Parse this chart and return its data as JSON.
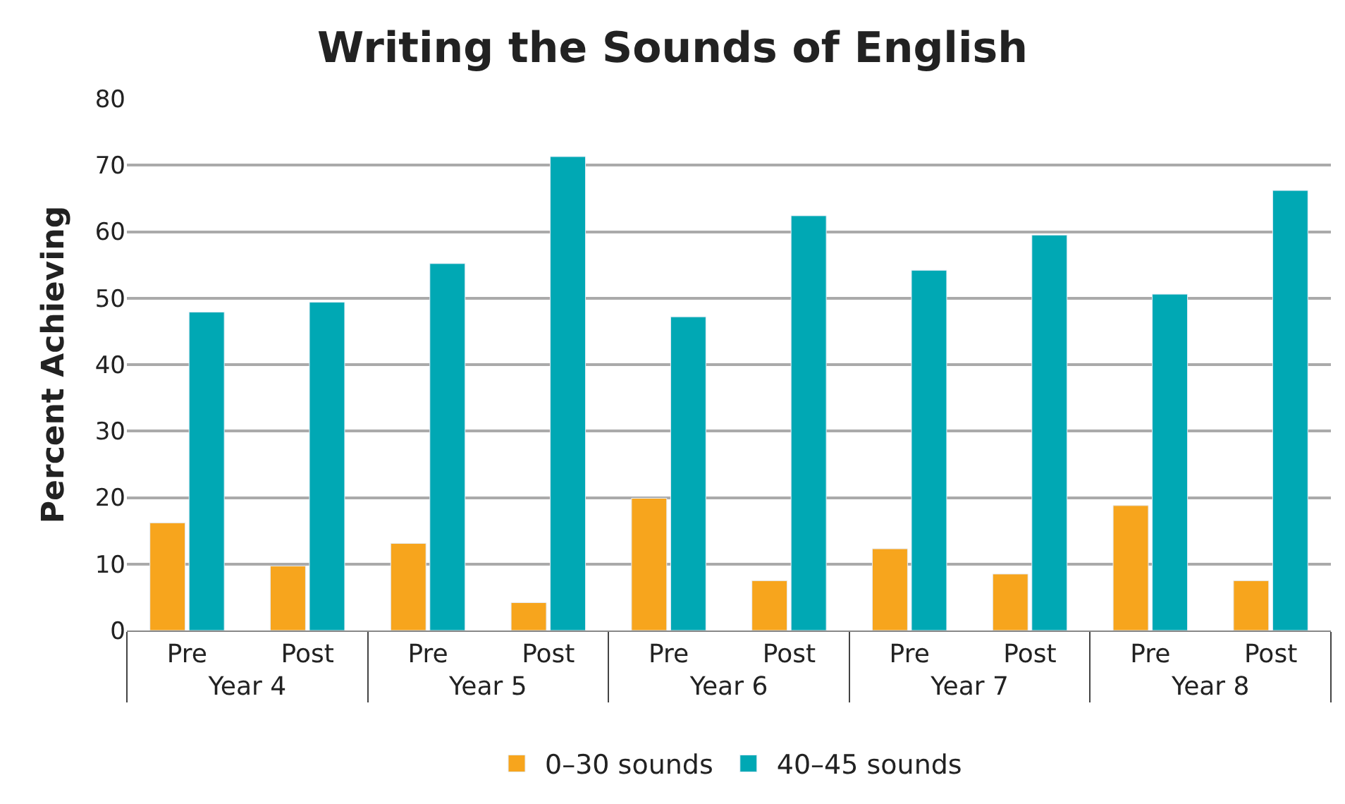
{
  "chart_data": {
    "type": "bar",
    "title": "Writing the Sounds of English",
    "ylabel": "Percent Achieving",
    "categories": [
      "Pre",
      "Post",
      "Pre",
      "Post",
      "Pre",
      "Post",
      "Pre",
      "Post",
      "Pre",
      "Post"
    ],
    "annotations": [
      "Year 4",
      "Year 5",
      "Year 6",
      "Year 7",
      "Year 8"
    ],
    "series": [
      {
        "name": "0–30 sounds",
        "color": "#f7a51d",
        "values": [
          16.2,
          9.7,
          13.1,
          4.2,
          19.9,
          7.5,
          12.3,
          8.5,
          18.8,
          7.5
        ]
      },
      {
        "name": "40–45 sounds",
        "color": "#00a8b4",
        "values": [
          47.9,
          49.4,
          55.2,
          71.3,
          47.2,
          62.4,
          54.2,
          59.5,
          50.6,
          66.2
        ]
      }
    ],
    "ylim": [
      0,
      80
    ],
    "yticks": [
      0,
      10,
      20,
      30,
      40,
      50,
      60,
      70,
      80
    ],
    "grid": "y",
    "legend": "bottom"
  }
}
